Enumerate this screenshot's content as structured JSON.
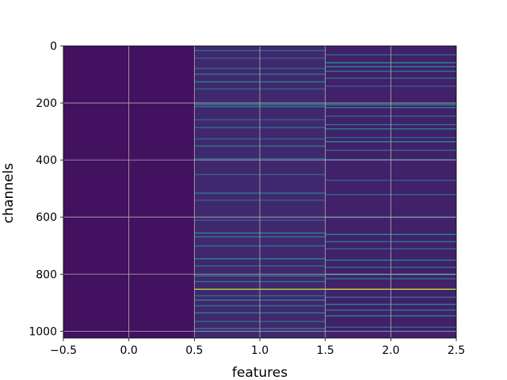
{
  "chart_data": {
    "type": "heatmap",
    "title": "",
    "xlabel": "features",
    "ylabel": "channels",
    "xlim": [
      -0.5,
      2.5
    ],
    "ylim": [
      1024,
      0
    ],
    "y_inverted": true,
    "grid": true,
    "colormap": "viridis",
    "x_ticks": [
      -0.5,
      0.0,
      0.5,
      1.0,
      1.5,
      2.0,
      2.5
    ],
    "x_tick_labels": [
      "−0.5",
      "0.0",
      "0.5",
      "1.0",
      "1.5",
      "2.0",
      "2.5"
    ],
    "y_ticks": [
      0,
      200,
      400,
      600,
      800,
      1000
    ],
    "y_tick_labels": [
      "0",
      "200",
      "400",
      "600",
      "800",
      "1000"
    ],
    "n_rows": 1024,
    "columns": [
      {
        "feature": 0,
        "base_level": 0.05,
        "bright_rows": []
      },
      {
        "feature": 1,
        "base_level": 0.12,
        "bright_rows": [
          {
            "channel": 15,
            "value": 0.35
          },
          {
            "channel": 42,
            "value": 0.3
          },
          {
            "channel": 78,
            "value": 0.32
          },
          {
            "channel": 98,
            "value": 0.4
          },
          {
            "channel": 125,
            "value": 0.45
          },
          {
            "channel": 150,
            "value": 0.3
          },
          {
            "channel": 205,
            "value": 0.45
          },
          {
            "channel": 212,
            "value": 0.4
          },
          {
            "channel": 258,
            "value": 0.3
          },
          {
            "channel": 285,
            "value": 0.35
          },
          {
            "channel": 325,
            "value": 0.32
          },
          {
            "channel": 350,
            "value": 0.4
          },
          {
            "channel": 395,
            "value": 0.35
          },
          {
            "channel": 450,
            "value": 0.3
          },
          {
            "channel": 515,
            "value": 0.4
          },
          {
            "channel": 540,
            "value": 0.3
          },
          {
            "channel": 610,
            "value": 0.3
          },
          {
            "channel": 655,
            "value": 0.45
          },
          {
            "channel": 668,
            "value": 0.4
          },
          {
            "channel": 700,
            "value": 0.38
          },
          {
            "channel": 745,
            "value": 0.45
          },
          {
            "channel": 770,
            "value": 0.35
          },
          {
            "channel": 805,
            "value": 0.42
          },
          {
            "channel": 825,
            "value": 0.38
          },
          {
            "channel": 852,
            "value": 0.9
          },
          {
            "channel": 875,
            "value": 0.35
          },
          {
            "channel": 890,
            "value": 0.45
          },
          {
            "channel": 910,
            "value": 0.38
          },
          {
            "channel": 935,
            "value": 0.42
          },
          {
            "channel": 965,
            "value": 0.35
          },
          {
            "channel": 990,
            "value": 0.4
          }
        ]
      },
      {
        "feature": 2,
        "base_level": 0.1,
        "bright_rows": [
          {
            "channel": 30,
            "value": 0.35
          },
          {
            "channel": 58,
            "value": 0.5
          },
          {
            "channel": 72,
            "value": 0.45
          },
          {
            "channel": 88,
            "value": 0.4
          },
          {
            "channel": 112,
            "value": 0.35
          },
          {
            "channel": 140,
            "value": 0.3
          },
          {
            "channel": 205,
            "value": 0.5
          },
          {
            "channel": 215,
            "value": 0.45
          },
          {
            "channel": 245,
            "value": 0.35
          },
          {
            "channel": 275,
            "value": 0.4
          },
          {
            "channel": 290,
            "value": 0.45
          },
          {
            "channel": 320,
            "value": 0.3
          },
          {
            "channel": 335,
            "value": 0.5
          },
          {
            "channel": 365,
            "value": 0.35
          },
          {
            "channel": 398,
            "value": 0.45
          },
          {
            "channel": 470,
            "value": 0.3
          },
          {
            "channel": 520,
            "value": 0.35
          },
          {
            "channel": 600,
            "value": 0.3
          },
          {
            "channel": 660,
            "value": 0.5
          },
          {
            "channel": 685,
            "value": 0.4
          },
          {
            "channel": 710,
            "value": 0.35
          },
          {
            "channel": 750,
            "value": 0.45
          },
          {
            "channel": 775,
            "value": 0.38
          },
          {
            "channel": 800,
            "value": 0.5
          },
          {
            "channel": 815,
            "value": 0.4
          },
          {
            "channel": 852,
            "value": 0.92
          },
          {
            "channel": 880,
            "value": 0.38
          },
          {
            "channel": 905,
            "value": 0.45
          },
          {
            "channel": 925,
            "value": 0.4
          },
          {
            "channel": 945,
            "value": 0.45
          },
          {
            "channel": 985,
            "value": 0.35
          }
        ]
      }
    ]
  }
}
